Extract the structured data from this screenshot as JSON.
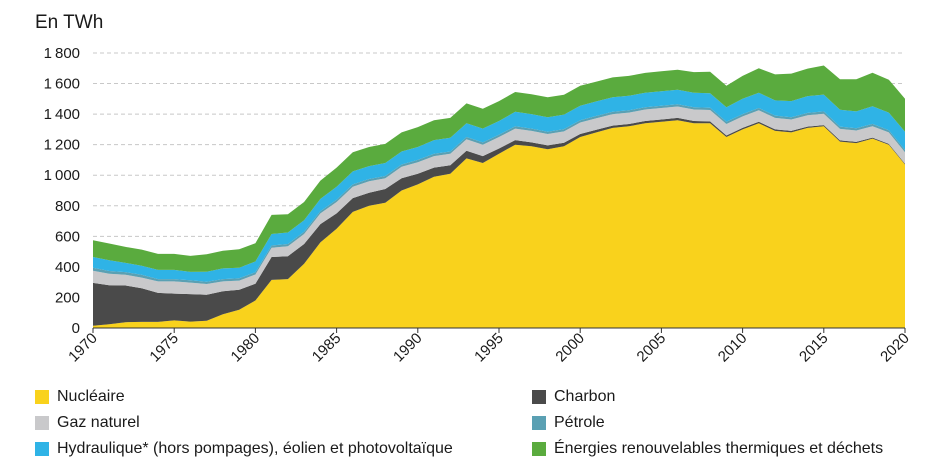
{
  "chart_data": {
    "type": "area",
    "stacked": true,
    "ylabel": "En TWh",
    "ylim": [
      0,
      1800
    ],
    "yticks": [
      0,
      200,
      400,
      600,
      800,
      1000,
      1200,
      1400,
      1600,
      1800
    ],
    "xlim": [
      1970,
      2020
    ],
    "xticks": [
      1970,
      1975,
      1980,
      1985,
      1990,
      1995,
      2000,
      2005,
      2010,
      2015,
      2020
    ],
    "grid": "horizontal dashed",
    "legend_position": "bottom",
    "x": [
      1970,
      1971,
      1972,
      1973,
      1974,
      1975,
      1976,
      1977,
      1978,
      1979,
      1980,
      1981,
      1982,
      1983,
      1984,
      1985,
      1986,
      1987,
      1988,
      1989,
      1990,
      1991,
      1992,
      1993,
      1994,
      1995,
      1996,
      1997,
      1998,
      1999,
      2000,
      2001,
      2002,
      2003,
      2004,
      2005,
      2006,
      2007,
      2008,
      2009,
      2010,
      2011,
      2012,
      2013,
      2014,
      2015,
      2016,
      2017,
      2018,
      2019,
      2020
    ],
    "series": [
      {
        "name": "Nucléaire",
        "color": "#f9d21c",
        "values": [
          15,
          25,
          38,
          40,
          40,
          50,
          42,
          48,
          90,
          120,
          180,
          315,
          320,
          420,
          560,
          650,
          760,
          800,
          820,
          900,
          940,
          990,
          1010,
          1110,
          1080,
          1140,
          1200,
          1190,
          1170,
          1190,
          1250,
          1280,
          1310,
          1320,
          1340,
          1350,
          1360,
          1340,
          1340,
          1250,
          1300,
          1340,
          1290,
          1280,
          1310,
          1320,
          1220,
          1210,
          1240,
          1200,
          1070
        ]
      },
      {
        "name": "Charbon",
        "color": "#4a4a4a",
        "values": [
          280,
          255,
          240,
          220,
          190,
          175,
          180,
          170,
          150,
          130,
          110,
          150,
          150,
          130,
          120,
          100,
          90,
          85,
          90,
          80,
          70,
          60,
          55,
          50,
          45,
          35,
          30,
          25,
          25,
          22,
          20,
          18,
          15,
          15,
          15,
          15,
          15,
          15,
          12,
          10,
          10,
          10,
          10,
          10,
          8,
          8,
          8,
          8,
          6,
          5,
          5
        ]
      },
      {
        "name": "Gaz naturel",
        "color": "#c9c9cb",
        "values": [
          80,
          75,
          70,
          70,
          75,
          80,
          75,
          70,
          65,
          60,
          60,
          60,
          65,
          65,
          70,
          75,
          75,
          75,
          70,
          75,
          75,
          75,
          75,
          75,
          75,
          75,
          75,
          75,
          75,
          75,
          75,
          75,
          75,
          75,
          75,
          75,
          75,
          75,
          75,
          75,
          75,
          75,
          75,
          75,
          75,
          75,
          75,
          75,
          75,
          75,
          75
        ]
      },
      {
        "name": "Pétrole",
        "color": "#5aa0b3",
        "values": [
          20,
          18,
          18,
          18,
          15,
          15,
          15,
          15,
          15,
          15,
          15,
          15,
          15,
          15,
          15,
          15,
          15,
          15,
          15,
          15,
          15,
          15,
          15,
          15,
          15,
          15,
          15,
          15,
          15,
          15,
          15,
          15,
          15,
          15,
          15,
          15,
          15,
          15,
          15,
          15,
          15,
          15,
          15,
          15,
          15,
          15,
          15,
          15,
          15,
          15,
          15
        ]
      },
      {
        "name": "Hydraulique* (hors pompages), éolien et photovoltaïque",
        "color": "#2fb3e6",
        "values": [
          70,
          70,
          60,
          60,
          60,
          60,
          55,
          65,
          70,
          70,
          70,
          75,
          75,
          75,
          80,
          85,
          85,
          85,
          85,
          85,
          85,
          90,
          90,
          90,
          90,
          90,
          95,
          95,
          95,
          95,
          95,
          95,
          95,
          95,
          95,
          95,
          95,
          95,
          95,
          95,
          100,
          100,
          100,
          105,
          110,
          110,
          110,
          110,
          115,
          115,
          120
        ]
      },
      {
        "name": "Énergies renouvelables thermiques et déchets",
        "color": "#5aab3e",
        "values": [
          110,
          110,
          105,
          105,
          105,
          105,
          105,
          115,
          115,
          120,
          120,
          125,
          120,
          120,
          120,
          125,
          125,
          125,
          125,
          125,
          130,
          130,
          130,
          130,
          130,
          130,
          130,
          130,
          130,
          130,
          130,
          130,
          130,
          130,
          130,
          130,
          130,
          135,
          140,
          140,
          150,
          160,
          170,
          180,
          180,
          190,
          200,
          210,
          220,
          215,
          215
        ]
      }
    ]
  }
}
